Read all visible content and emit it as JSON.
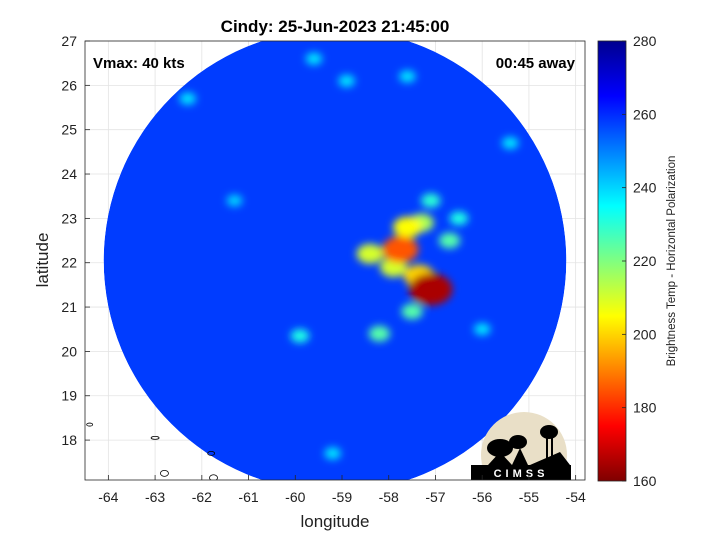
{
  "title": "Cindy: 25-Jun-2023 21:45:00",
  "vmax_label": "Vmax: 40 kts",
  "time_label": "00:45 away",
  "logo_text": "CIMSS",
  "chart_data": {
    "type": "heatmap",
    "xlabel": "longitude",
    "ylabel": "latitude",
    "xlim": [
      -64.5,
      -53.8
    ],
    "ylim": [
      17.1,
      27
    ],
    "x_ticks": [
      -64,
      -63,
      -62,
      -61,
      -60,
      -59,
      -58,
      -57,
      -56,
      -55,
      -54
    ],
    "x_tick_labels": [
      "-64",
      "-63",
      "-62",
      "-61",
      "-60",
      "-59",
      "-58",
      "-57",
      "-56",
      "-55",
      "-54"
    ],
    "y_ticks": [
      18,
      19,
      20,
      21,
      22,
      23,
      24,
      25,
      26,
      27
    ],
    "y_tick_labels": [
      "18",
      "19",
      "20",
      "21",
      "22",
      "23",
      "24",
      "25",
      "26",
      "27"
    ],
    "grid": true,
    "swath_center": [
      -59.15,
      22.05
    ],
    "swath_radius_deg": 4.95,
    "colorbar": {
      "label": "Brightness Temp - Horizontal Polarization",
      "min": 160,
      "max": 280,
      "ticks": [
        160,
        180,
        200,
        220,
        240,
        260,
        280
      ],
      "tick_labels": [
        "160",
        "180",
        "200",
        "220",
        "240",
        "260",
        "280"
      ],
      "colors": [
        "#7f0000",
        "#ff0000",
        "#ff8000",
        "#ffff00",
        "#80ff80",
        "#00ffff",
        "#0080ff",
        "#0000ff",
        "#00008f"
      ]
    },
    "background_temp": 258,
    "cold_features": [
      {
        "lon": -57.1,
        "lat": 21.4,
        "temp": 165
      },
      {
        "lon": -57.75,
        "lat": 22.3,
        "temp": 185
      },
      {
        "lon": -57.35,
        "lat": 21.7,
        "temp": 200
      },
      {
        "lon": -57.6,
        "lat": 22.8,
        "temp": 205
      },
      {
        "lon": -58.4,
        "lat": 22.2,
        "temp": 210
      },
      {
        "lon": -57.9,
        "lat": 21.9,
        "temp": 210
      },
      {
        "lon": -57.3,
        "lat": 22.9,
        "temp": 215
      },
      {
        "lon": -56.7,
        "lat": 22.5,
        "temp": 225
      },
      {
        "lon": -57.5,
        "lat": 20.9,
        "temp": 225
      },
      {
        "lon": -58.2,
        "lat": 20.4,
        "temp": 225
      },
      {
        "lon": -57.1,
        "lat": 23.4,
        "temp": 230
      },
      {
        "lon": -56.5,
        "lat": 23.0,
        "temp": 232
      },
      {
        "lon": -55.4,
        "lat": 24.7,
        "temp": 238
      },
      {
        "lon": -56.0,
        "lat": 20.5,
        "temp": 238
      },
      {
        "lon": -59.9,
        "lat": 20.35,
        "temp": 232
      },
      {
        "lon": -61.3,
        "lat": 23.4,
        "temp": 240
      },
      {
        "lon": -59.6,
        "lat": 26.6,
        "temp": 238
      },
      {
        "lon": -58.9,
        "lat": 26.1,
        "temp": 238
      },
      {
        "lon": -57.6,
        "lat": 26.2,
        "temp": 238
      },
      {
        "lon": -62.3,
        "lat": 25.7,
        "temp": 238
      },
      {
        "lon": -59.2,
        "lat": 17.7,
        "temp": 238
      }
    ]
  }
}
